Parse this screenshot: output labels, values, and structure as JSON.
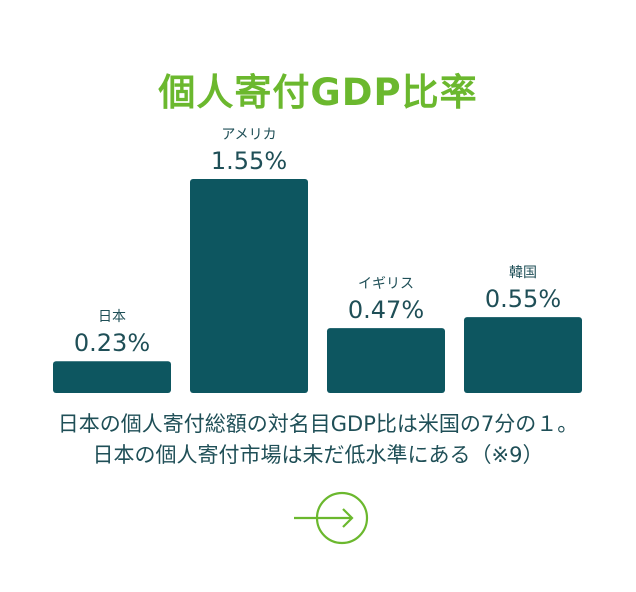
{
  "title": "個人寄付GDP比率",
  "colors": {
    "accent": "#6bb82e",
    "bar": "#0d5660",
    "text": "#1f4f57"
  },
  "chart_data": {
    "type": "bar",
    "title": "個人寄付GDP比率",
    "categories": [
      "日本",
      "アメリカ",
      "イギリス",
      "韓国"
    ],
    "values": [
      0.23,
      1.55,
      0.47,
      0.55
    ],
    "value_labels": [
      "0.23%",
      "1.55%",
      "0.47%",
      "0.55%"
    ],
    "xlabel": "",
    "ylabel": "",
    "ylim": [
      0,
      1.55
    ],
    "grid": false,
    "legend": "none"
  },
  "description": {
    "line1": "日本の個人寄付総額の対名目GDP比は米国の7分の１。",
    "line2": "日本の個人寄付市場は未だ低水準にある（※9）"
  },
  "link": {
    "icon": "arrow-right-circle-icon"
  }
}
